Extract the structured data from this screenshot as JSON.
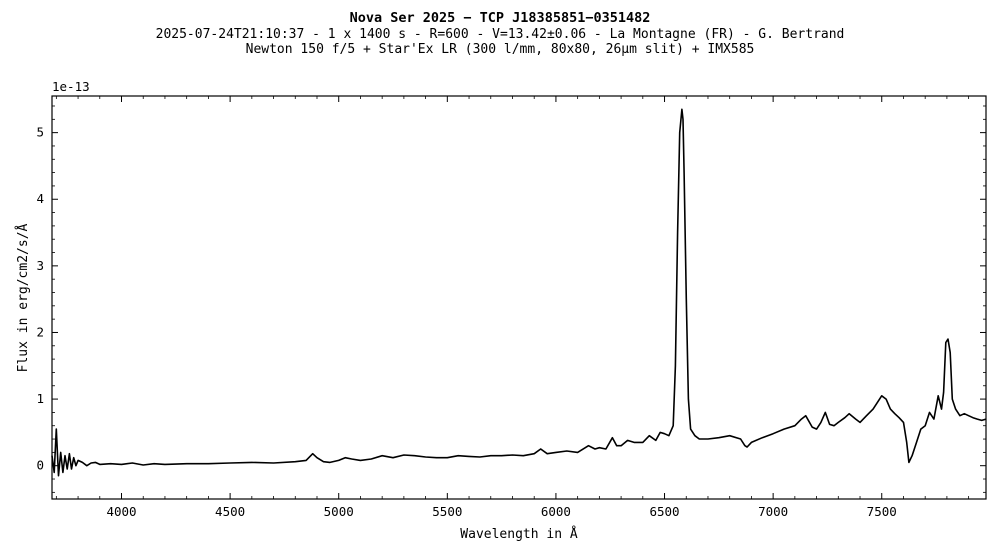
{
  "chart_data": {
    "type": "line",
    "title": "Nova Ser 2025 − TCP J18385851−0351482",
    "subtitle_lines": [
      "2025-07-24T21:10:37 - 1 x 1400 s - R=600 - V=13.42±0.06 - La Montagne (FR) - G. Bertrand",
      "Newton 150 f/5 + Star'Ex LR (300 l/mm, 80x80, 26µm slit) + IMX585"
    ],
    "xlabel": "Wavelength in Å",
    "ylabel": "Flux in erg/cm2/s/Å",
    "y_offset_text": "1e-13",
    "y_multiplier": 1e-13,
    "xlim": [
      3680,
      7980
    ],
    "ylim": [
      -0.5,
      5.55
    ],
    "x_ticks": [
      4000,
      4500,
      5000,
      5500,
      6000,
      6500,
      7000,
      7500
    ],
    "x_tick_labels": [
      "4000",
      "4500",
      "5000",
      "5500",
      "6000",
      "6500",
      "7000",
      "7500"
    ],
    "y_ticks": [
      0,
      1,
      2,
      3,
      4,
      5
    ],
    "y_tick_labels": [
      "0",
      "1",
      "2",
      "3",
      "4",
      "5"
    ],
    "grid": false,
    "legend": "none",
    "line_color": "#000000",
    "series": [
      {
        "x": [
          3680,
          3690,
          3700,
          3710,
          3720,
          3730,
          3740,
          3750,
          3760,
          3770,
          3780,
          3790,
          3800,
          3820,
          3840,
          3860,
          3880,
          3900,
          3950,
          4000,
          4050,
          4100,
          4150,
          4200,
          4300,
          4400,
          4500,
          4600,
          4700,
          4800,
          4850,
          4880,
          4900,
          4930,
          4960,
          5000,
          5030,
          5060,
          5100,
          5150,
          5200,
          5250,
          5300,
          5350,
          5400,
          5450,
          5500,
          5550,
          5600,
          5650,
          5700,
          5750,
          5800,
          5850,
          5900,
          5930,
          5960,
          6000,
          6050,
          6100,
          6150,
          6180,
          6200,
          6230,
          6260,
          6280,
          6300,
          6330,
          6360,
          6400,
          6430,
          6460,
          6480,
          6500,
          6520,
          6540,
          6550,
          6560,
          6570,
          6580,
          6585,
          6590,
          6600,
          6610,
          6620,
          6640,
          6660,
          6700,
          6750,
          6800,
          6850,
          6870,
          6880,
          6900,
          6950,
          7000,
          7050,
          7100,
          7130,
          7150,
          7180,
          7200,
          7220,
          7240,
          7260,
          7280,
          7300,
          7330,
          7350,
          7380,
          7400,
          7430,
          7460,
          7480,
          7500,
          7520,
          7540,
          7560,
          7580,
          7600,
          7615,
          7625,
          7640,
          7660,
          7680,
          7700,
          7720,
          7740,
          7760,
          7775,
          7785,
          7795,
          7805,
          7815,
          7825,
          7840,
          7860,
          7880,
          7900,
          7920,
          7940,
          7960,
          7980
        ],
        "values": [
          0.15,
          -0.1,
          0.55,
          -0.15,
          0.2,
          -0.1,
          0.15,
          -0.05,
          0.18,
          -0.05,
          0.12,
          0.0,
          0.08,
          0.05,
          0.0,
          0.04,
          0.05,
          0.02,
          0.03,
          0.02,
          0.04,
          0.01,
          0.03,
          0.02,
          0.03,
          0.03,
          0.04,
          0.05,
          0.04,
          0.06,
          0.08,
          0.18,
          0.12,
          0.06,
          0.05,
          0.08,
          0.12,
          0.1,
          0.08,
          0.1,
          0.15,
          0.12,
          0.16,
          0.15,
          0.13,
          0.12,
          0.12,
          0.15,
          0.14,
          0.13,
          0.15,
          0.15,
          0.16,
          0.15,
          0.18,
          0.25,
          0.18,
          0.2,
          0.22,
          0.2,
          0.3,
          0.25,
          0.27,
          0.25,
          0.42,
          0.3,
          0.3,
          0.38,
          0.35,
          0.35,
          0.45,
          0.38,
          0.5,
          0.48,
          0.45,
          0.6,
          1.5,
          3.5,
          5.0,
          5.35,
          5.2,
          4.4,
          2.5,
          1.0,
          0.55,
          0.45,
          0.4,
          0.4,
          0.42,
          0.45,
          0.4,
          0.3,
          0.28,
          0.35,
          0.42,
          0.48,
          0.55,
          0.6,
          0.7,
          0.75,
          0.58,
          0.55,
          0.65,
          0.8,
          0.62,
          0.6,
          0.65,
          0.72,
          0.78,
          0.7,
          0.65,
          0.75,
          0.85,
          0.95,
          1.05,
          1.0,
          0.85,
          0.78,
          0.72,
          0.65,
          0.35,
          0.05,
          0.15,
          0.35,
          0.55,
          0.6,
          0.8,
          0.7,
          1.05,
          0.85,
          1.1,
          1.85,
          1.9,
          1.7,
          1.0,
          0.85,
          0.75,
          0.78,
          0.75,
          0.72,
          0.7,
          0.68,
          0.7
        ]
      }
    ]
  }
}
